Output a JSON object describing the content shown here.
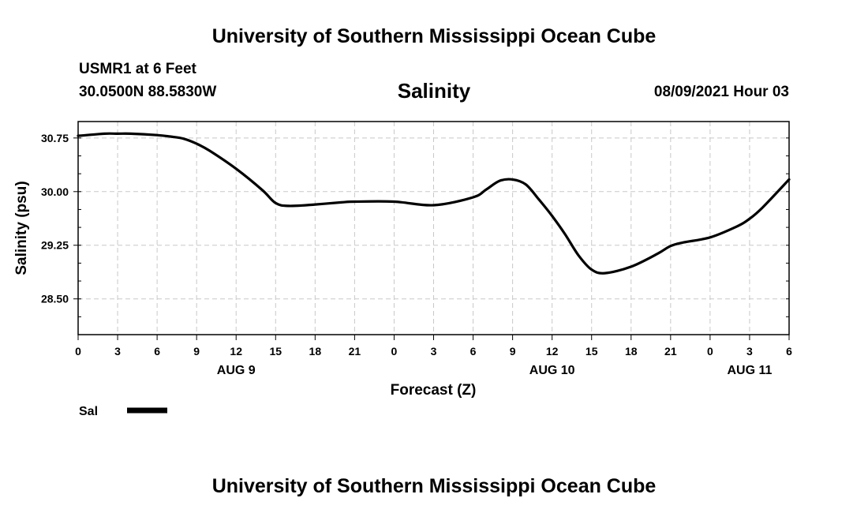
{
  "header": {
    "title": "University of Southern Mississippi Ocean Cube",
    "station": "USMR1 at 6 Feet",
    "coords": "30.0500N  88.5830W",
    "parameter": "Salinity",
    "datetime": "08/09/2021 Hour 03"
  },
  "footer": {
    "title": "University of Southern Mississippi Ocean Cube"
  },
  "legend": {
    "label": "Sal",
    "color": "#000000"
  },
  "chart_data": {
    "type": "line",
    "title": "Salinity",
    "xlabel": "Forecast (Z)",
    "ylabel": "Salinity (psu)",
    "xlim": [
      0,
      54
    ],
    "ylim": [
      28.0,
      30.98
    ],
    "yticks": [
      "30.75",
      "30.00",
      "29.25",
      "28.50"
    ],
    "ytick_values": [
      30.75,
      30.0,
      29.25,
      28.5
    ],
    "xtick_labels": [
      "0",
      "3",
      "6",
      "9",
      "12",
      "15",
      "18",
      "21",
      "0",
      "3",
      "6",
      "9",
      "12",
      "15",
      "18",
      "21",
      "0",
      "3",
      "6"
    ],
    "date_labels": [
      {
        "label": "AUG 9",
        "hour": 12
      },
      {
        "label": "AUG 10",
        "hour": 36
      },
      {
        "label": "AUG 11",
        "hour": 51
      }
    ],
    "grid": true,
    "series": [
      {
        "name": "Sal",
        "color": "#000000",
        "x": [
          0,
          2,
          3,
          4,
          6,
          7,
          8,
          9,
          10,
          12,
          14,
          15,
          16,
          18,
          20,
          21,
          24,
          27,
          30,
          31,
          32,
          33,
          34,
          35,
          36,
          37,
          38,
          39,
          40,
          42,
          44,
          45,
          46,
          48,
          50,
          51,
          52,
          54
        ],
        "y": [
          30.78,
          30.81,
          30.81,
          30.81,
          30.79,
          30.77,
          30.74,
          30.67,
          30.57,
          30.32,
          30.02,
          29.84,
          29.8,
          29.82,
          29.85,
          29.86,
          29.86,
          29.81,
          29.92,
          30.03,
          30.15,
          30.17,
          30.1,
          29.89,
          29.66,
          29.4,
          29.11,
          28.91,
          28.86,
          28.95,
          29.13,
          29.24,
          29.29,
          29.36,
          29.51,
          29.62,
          29.78,
          30.17
        ]
      }
    ]
  }
}
